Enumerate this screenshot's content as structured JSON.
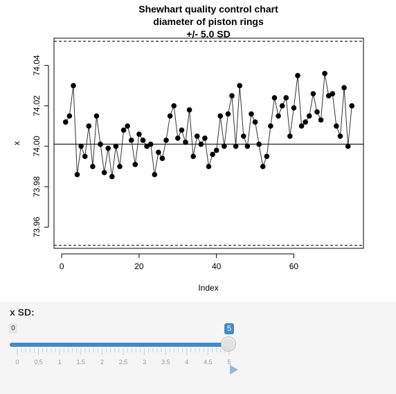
{
  "chart_data": {
    "type": "line",
    "title": "Shewhart quality control chart",
    "subtitle": "diameter of piston rings",
    "subtitle2": "+/- 5.0 SD",
    "xlabel": "Index",
    "ylabel": "x",
    "xlim": [
      -2,
      78
    ],
    "ylim": [
      73.9495,
      74.0535
    ],
    "x_ticks": [
      "0",
      "20",
      "40",
      "60"
    ],
    "x_tick_values": [
      0,
      20,
      40,
      60
    ],
    "y_ticks": [
      "73.96",
      "73.98",
      "74.00",
      "74.02",
      "74.04"
    ],
    "y_tick_values": [
      73.96,
      73.98,
      74.0,
      74.02,
      74.04
    ],
    "center_line": 74.001,
    "upper_limit": 74.052,
    "lower_limit": 73.951,
    "x": [
      1,
      2,
      3,
      4,
      5,
      6,
      7,
      8,
      9,
      10,
      11,
      12,
      13,
      14,
      15,
      16,
      17,
      18,
      19,
      20,
      21,
      22,
      23,
      24,
      25,
      26,
      27,
      28,
      29,
      30,
      31,
      32,
      33,
      34,
      35,
      36,
      37,
      38,
      39,
      40,
      41,
      42,
      43,
      44,
      45,
      46,
      47,
      48,
      49,
      50,
      51,
      52,
      53,
      54,
      55,
      56,
      57,
      58,
      59,
      60,
      61,
      62,
      63,
      64,
      65,
      66,
      67,
      68,
      69,
      70,
      71,
      72,
      73,
      74,
      75
    ],
    "values": [
      74.012,
      74.015,
      74.03,
      73.986,
      74.0,
      73.995,
      74.01,
      73.99,
      74.015,
      74.001,
      73.987,
      73.999,
      73.985,
      74.0,
      73.99,
      74.008,
      74.01,
      74.003,
      73.991,
      74.006,
      74.003,
      74.0,
      74.001,
      73.986,
      73.997,
      73.994,
      74.003,
      74.015,
      74.02,
      74.004,
      74.008,
      74.002,
      74.018,
      73.995,
      74.005,
      74.001,
      74.004,
      73.99,
      73.996,
      73.998,
      74.015,
      74.0,
      74.016,
      74.025,
      74.0,
      74.03,
      74.005,
      74.0,
      74.016,
      74.012,
      74.001,
      73.99,
      73.995,
      74.01,
      74.024,
      74.015,
      74.02,
      74.024,
      74.005,
      74.019,
      74.035,
      74.01,
      74.012,
      74.015,
      74.026,
      74.017,
      74.013,
      74.036,
      74.025,
      74.026,
      74.01,
      74.005,
      74.029,
      74.0,
      74.02
    ]
  },
  "slider": {
    "label": "x SD:",
    "min_label": "0",
    "value_label": "5",
    "value": 5,
    "min": 0,
    "max": 5,
    "tick_labels": [
      "0",
      "0.5",
      "1",
      "1.5",
      "2",
      "2.5",
      "3",
      "3.5",
      "4",
      "4.5",
      "5"
    ]
  },
  "colors": {
    "accent": "#428bca",
    "plot_background": "#ffffff",
    "page_background": "#f5f5f5"
  },
  "icons": {
    "play": "play-icon"
  }
}
